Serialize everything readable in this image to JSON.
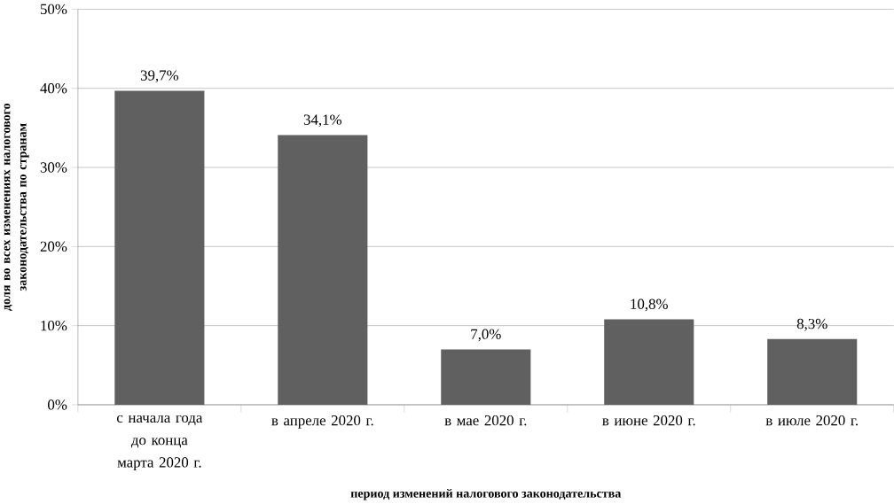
{
  "chart_data": {
    "type": "bar",
    "xlabel": "период изменений налогового законодательства",
    "ylabel": "доля во всех изменениях налогового законодательства по странам",
    "categories": [
      "с начала года до конца марта 2020 г.",
      "в апреле 2020 г.",
      "в мае 2020 г.",
      "в июне 2020 г.",
      "в июле 2020 г."
    ],
    "values": [
      39.7,
      34.1,
      7.0,
      10.8,
      8.3
    ],
    "value_labels": [
      "39,7%",
      "34,1%",
      "7,0%",
      "10,8%",
      "8,3%"
    ],
    "color": "#606060",
    "ylim": [
      0,
      50
    ],
    "yticks": [
      {
        "value": 0,
        "label": "0%"
      },
      {
        "value": 10,
        "label": "10%"
      },
      {
        "value": 20,
        "label": "20%"
      },
      {
        "value": 30,
        "label": "30%"
      },
      {
        "value": 40,
        "label": "40%"
      },
      {
        "value": 50,
        "label": "50%"
      }
    ],
    "grid": "y"
  }
}
